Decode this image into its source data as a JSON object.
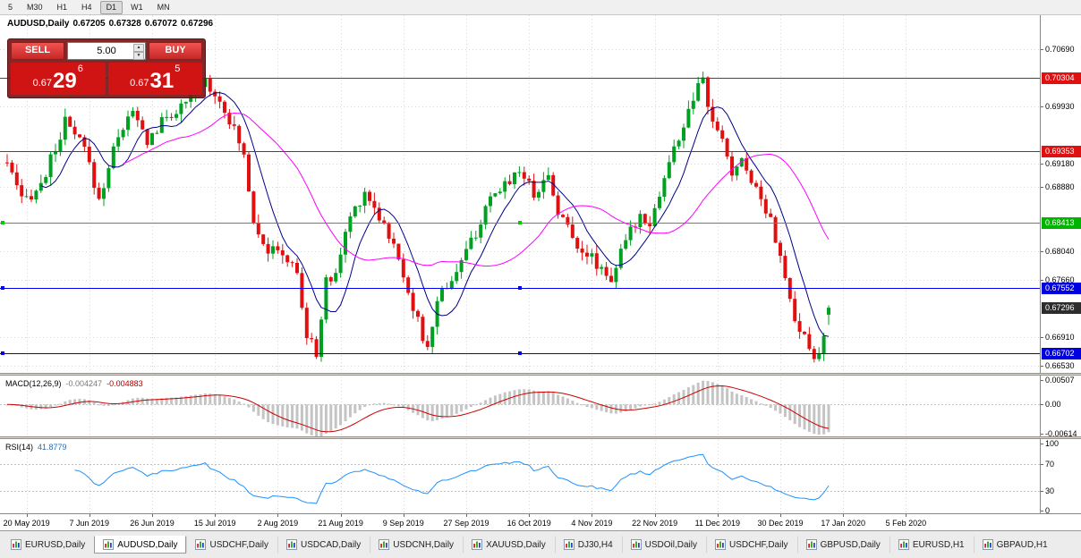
{
  "toolbar": {
    "timeframes": [
      "5",
      "M30",
      "H1",
      "H4",
      "D1",
      "W1",
      "MN"
    ],
    "active": "D1"
  },
  "chart": {
    "symbol": "AUDUSD,Daily",
    "ohlc": {
      "open": "0.67205",
      "high": "0.67328",
      "low": "0.67072",
      "close": "0.67296"
    }
  },
  "trade_panel": {
    "sell_label": "SELL",
    "buy_label": "BUY",
    "volume": "5.00",
    "sell_price_prefix": "0.67",
    "sell_price_big": "29",
    "sell_price_sup": "6",
    "buy_price_prefix": "0.67",
    "buy_price_big": "31",
    "buy_price_sup": "5"
  },
  "indicators": {
    "macd": {
      "name": "MACD(12,26,9)",
      "value_main": "-0.004247",
      "value_signal": "-0.004883"
    },
    "rsi": {
      "name": "RSI(14)",
      "value": "41.8779"
    }
  },
  "price_axis": {
    "main_labels": [
      {
        "text": "0.70690",
        "value": 0.7069
      },
      {
        "text": "0.69930",
        "value": 0.6993
      },
      {
        "text": "0.69180",
        "value": 0.6918
      },
      {
        "text": "0.68880",
        "value": 0.6888
      },
      {
        "text": "0.68040",
        "value": 0.6804
      },
      {
        "text": "0.67660",
        "value": 0.6766
      },
      {
        "text": "0.66910",
        "value": 0.6691
      },
      {
        "text": "0.66530",
        "value": 0.6653
      }
    ],
    "tags": [
      {
        "text": "0.70304",
        "value": 0.70304,
        "bg": "#e01010",
        "name": "resistance-price-tag"
      },
      {
        "text": "0.69353",
        "value": 0.69353,
        "bg": "#e01010",
        "name": "resistance-price-tag"
      },
      {
        "text": "0.68413",
        "value": 0.68413,
        "bg": "#00b400",
        "name": "level-price-tag"
      },
      {
        "text": "0.67552",
        "value": 0.67552,
        "bg": "#0000e0",
        "name": "support-price-tag"
      },
      {
        "text": "0.67296",
        "value": 0.67296,
        "bg": "#2d2d2d",
        "name": "current-price-tag"
      },
      {
        "text": "0.66702",
        "value": 0.66702,
        "bg": "#0000e0",
        "name": "support-price-tag"
      }
    ],
    "macd_labels": [
      {
        "text": "0.00507",
        "value": 0.00507
      },
      {
        "text": "0.00",
        "value": 0
      },
      {
        "text": "-0.00614",
        "value": -0.00614
      }
    ],
    "rsi_labels": [
      {
        "text": "100",
        "value": 100
      },
      {
        "text": "70",
        "value": 70
      },
      {
        "text": "30",
        "value": 30
      },
      {
        "text": "0",
        "value": 0
      }
    ]
  },
  "hlines": [
    {
      "value": 0.70304,
      "color": "#f00000",
      "handles": false
    },
    {
      "value": 0.69353,
      "color": "#f00000",
      "handles": false
    },
    {
      "value": 0.68413,
      "color": "#00cc00",
      "handles": true
    },
    {
      "value": 0.67552,
      "color": "#0000f0",
      "handles": true
    },
    {
      "value": 0.66702,
      "color": "#0000f0",
      "handles": true
    }
  ],
  "time_axis": [
    "20 May 2019",
    "7 Jun 2019",
    "26 Jun 2019",
    "15 Jul 2019",
    "2 Aug 2019",
    "21 Aug 2019",
    "9 Sep 2019",
    "27 Sep 2019",
    "16 Oct 2019",
    "4 Nov 2019",
    "22 Nov 2019",
    "11 Dec 2019",
    "30 Dec 2019",
    "17 Jan 2020",
    "5 Feb 2020"
  ],
  "tabs": [
    {
      "label": "EURUSD,Daily",
      "active": false
    },
    {
      "label": "AUDUSD,Daily",
      "active": true
    },
    {
      "label": "USDCHF,Daily",
      "active": false
    },
    {
      "label": "USDCAD,Daily",
      "active": false
    },
    {
      "label": "USDCNH,Daily",
      "active": false
    },
    {
      "label": "XAUUSD,Daily",
      "active": false
    },
    {
      "label": "DJ30,H4",
      "active": false
    },
    {
      "label": "USDOil,Daily",
      "active": false
    },
    {
      "label": "USDCHF,Daily",
      "active": false
    },
    {
      "label": "GBPUSD,Daily",
      "active": false
    },
    {
      "label": "EURUSD,H1",
      "active": false
    },
    {
      "label": "GBPAUD,H1",
      "active": false
    }
  ],
  "colors": {
    "bull": "#00a021",
    "bear": "#e01010",
    "wick_bull": "#00a021",
    "wick_bear": "#e01010",
    "ma_fast": "#00008b",
    "ma_slow": "#ff00ff",
    "macd_hist": "#c4c4c4",
    "macd_signal": "#cc0000",
    "rsi_line": "#1e90ff",
    "grid": "#d6d6d6",
    "level_dotted": "#c0c0c0"
  },
  "chart_data": {
    "type": "candlestick",
    "symbol": "AUDUSD",
    "timeframe": "Daily",
    "ylim": [
      0.6643,
      0.7113
    ],
    "candle_count": 171,
    "macd_range": [
      -0.0068,
      0.0058
    ],
    "rsi_levels": [
      70,
      30
    ],
    "horizontal_levels": [
      0.70304,
      0.69353,
      0.68413,
      0.67552,
      0.66702
    ],
    "last_candle": {
      "open": 0.67205,
      "high": 0.67328,
      "low": 0.67072,
      "close": 0.67296
    },
    "price_path": [
      [
        0,
        0.692
      ],
      [
        3,
        0.6868
      ],
      [
        7,
        0.689
      ],
      [
        12,
        0.6972
      ],
      [
        16,
        0.6938
      ],
      [
        19,
        0.687
      ],
      [
        23,
        0.6958
      ],
      [
        26,
        0.6985
      ],
      [
        29,
        0.6948
      ],
      [
        33,
        0.698
      ],
      [
        37,
        0.6995
      ],
      [
        41,
        0.7028
      ],
      [
        45,
        0.6992
      ],
      [
        49,
        0.693
      ],
      [
        51,
        0.6845
      ],
      [
        54,
        0.6805
      ],
      [
        57,
        0.68
      ],
      [
        60,
        0.6775
      ],
      [
        62,
        0.669
      ],
      [
        64,
        0.6672
      ],
      [
        66,
        0.6762
      ],
      [
        68,
        0.6775
      ],
      [
        71,
        0.685
      ],
      [
        74,
        0.6882
      ],
      [
        76,
        0.6862
      ],
      [
        79,
        0.6825
      ],
      [
        82,
        0.6775
      ],
      [
        85,
        0.671
      ],
      [
        87,
        0.6672
      ],
      [
        89,
        0.6742
      ],
      [
        92,
        0.6768
      ],
      [
        95,
        0.6802
      ],
      [
        98,
        0.6842
      ],
      [
        100,
        0.6868
      ],
      [
        103,
        0.6892
      ],
      [
        106,
        0.6912
      ],
      [
        109,
        0.688
      ],
      [
        112,
        0.6902
      ],
      [
        114,
        0.6858
      ],
      [
        117,
        0.6822
      ],
      [
        120,
        0.68
      ],
      [
        123,
        0.6782
      ],
      [
        125,
        0.6768
      ],
      [
        127,
        0.68
      ],
      [
        129,
        0.683
      ],
      [
        131,
        0.6852
      ],
      [
        133,
        0.6842
      ],
      [
        135,
        0.6878
      ],
      [
        137,
        0.692
      ],
      [
        139,
        0.6952
      ],
      [
        142,
        0.7002
      ],
      [
        144,
        0.703
      ],
      [
        145,
        0.6992
      ],
      [
        147,
        0.696
      ],
      [
        149,
        0.693
      ],
      [
        150,
        0.6905
      ],
      [
        152,
        0.6922
      ],
      [
        154,
        0.69
      ],
      [
        156,
        0.6872
      ],
      [
        158,
        0.685
      ],
      [
        160,
        0.6792
      ],
      [
        162,
        0.6742
      ],
      [
        163,
        0.6705
      ],
      [
        165,
        0.669
      ],
      [
        167,
        0.6662
      ],
      [
        168,
        0.6668
      ],
      [
        170,
        0.673
      ]
    ]
  }
}
